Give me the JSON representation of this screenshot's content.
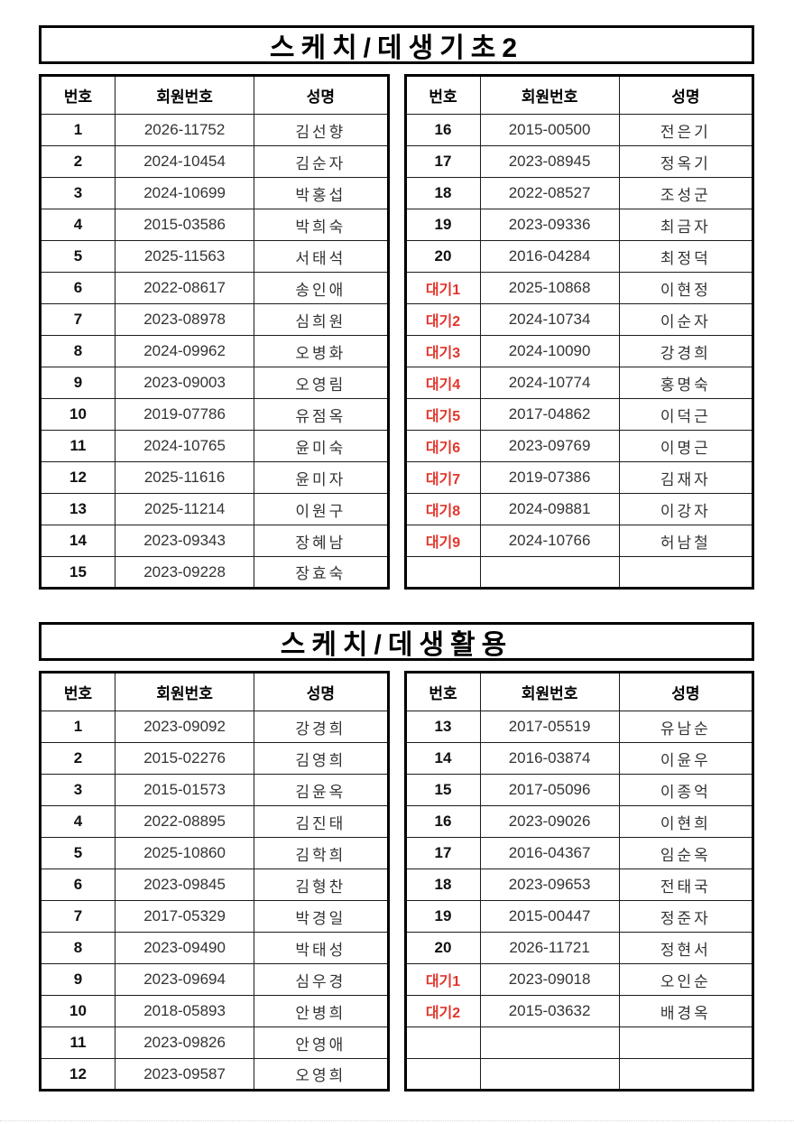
{
  "colors": {
    "border": "#000000",
    "text": "#111111",
    "cell_text": "#333333",
    "waitlist_red": "#e2352b",
    "background": "#ffffff"
  },
  "sections": [
    {
      "title": "스케치/데생기초2",
      "columns": [
        "번호",
        "회원번호",
        "성명"
      ],
      "left_rows": [
        {
          "no": "1",
          "member_no": "2026-11752",
          "name": "김선향",
          "wait": false
        },
        {
          "no": "2",
          "member_no": "2024-10454",
          "name": "김순자",
          "wait": false
        },
        {
          "no": "3",
          "member_no": "2024-10699",
          "name": "박홍섭",
          "wait": false
        },
        {
          "no": "4",
          "member_no": "2015-03586",
          "name": "박희숙",
          "wait": false
        },
        {
          "no": "5",
          "member_no": "2025-11563",
          "name": "서태석",
          "wait": false
        },
        {
          "no": "6",
          "member_no": "2022-08617",
          "name": "송인애",
          "wait": false
        },
        {
          "no": "7",
          "member_no": "2023-08978",
          "name": "심희원",
          "wait": false
        },
        {
          "no": "8",
          "member_no": "2024-09962",
          "name": "오병화",
          "wait": false
        },
        {
          "no": "9",
          "member_no": "2023-09003",
          "name": "오영림",
          "wait": false
        },
        {
          "no": "10",
          "member_no": "2019-07786",
          "name": "유점옥",
          "wait": false
        },
        {
          "no": "11",
          "member_no": "2024-10765",
          "name": "윤미숙",
          "wait": false
        },
        {
          "no": "12",
          "member_no": "2025-11616",
          "name": "윤미자",
          "wait": false
        },
        {
          "no": "13",
          "member_no": "2025-11214",
          "name": "이원구",
          "wait": false
        },
        {
          "no": "14",
          "member_no": "2023-09343",
          "name": "장혜남",
          "wait": false
        },
        {
          "no": "15",
          "member_no": "2023-09228",
          "name": "장효숙",
          "wait": false
        }
      ],
      "right_rows": [
        {
          "no": "16",
          "member_no": "2015-00500",
          "name": "전은기",
          "wait": false
        },
        {
          "no": "17",
          "member_no": "2023-08945",
          "name": "정옥기",
          "wait": false
        },
        {
          "no": "18",
          "member_no": "2022-08527",
          "name": "조성군",
          "wait": false
        },
        {
          "no": "19",
          "member_no": "2023-09336",
          "name": "최금자",
          "wait": false
        },
        {
          "no": "20",
          "member_no": "2016-04284",
          "name": "최정덕",
          "wait": false
        },
        {
          "no": "대기1",
          "member_no": "2025-10868",
          "name": "이현정",
          "wait": true
        },
        {
          "no": "대기2",
          "member_no": "2024-10734",
          "name": "이순자",
          "wait": true
        },
        {
          "no": "대기3",
          "member_no": "2024-10090",
          "name": "강경희",
          "wait": true
        },
        {
          "no": "대기4",
          "member_no": "2024-10774",
          "name": "홍명숙",
          "wait": true
        },
        {
          "no": "대기5",
          "member_no": "2017-04862",
          "name": "이덕근",
          "wait": true
        },
        {
          "no": "대기6",
          "member_no": "2023-09769",
          "name": "이명근",
          "wait": true
        },
        {
          "no": "대기7",
          "member_no": "2019-07386",
          "name": "김재자",
          "wait": true
        },
        {
          "no": "대기8",
          "member_no": "2024-09881",
          "name": "이강자",
          "wait": true
        },
        {
          "no": "대기9",
          "member_no": "2024-10766",
          "name": "허남철",
          "wait": true
        },
        {
          "no": "",
          "member_no": "",
          "name": "",
          "wait": false
        }
      ]
    },
    {
      "title": "스케치/데생활용",
      "columns": [
        "번호",
        "회원번호",
        "성명"
      ],
      "left_rows": [
        {
          "no": "1",
          "member_no": "2023-09092",
          "name": "강경희",
          "wait": false
        },
        {
          "no": "2",
          "member_no": "2015-02276",
          "name": "김영희",
          "wait": false
        },
        {
          "no": "3",
          "member_no": "2015-01573",
          "name": "김윤옥",
          "wait": false
        },
        {
          "no": "4",
          "member_no": "2022-08895",
          "name": "김진태",
          "wait": false
        },
        {
          "no": "5",
          "member_no": "2025-10860",
          "name": "김학희",
          "wait": false
        },
        {
          "no": "6",
          "member_no": "2023-09845",
          "name": "김형찬",
          "wait": false
        },
        {
          "no": "7",
          "member_no": "2017-05329",
          "name": "박경일",
          "wait": false
        },
        {
          "no": "8",
          "member_no": "2023-09490",
          "name": "박태성",
          "wait": false
        },
        {
          "no": "9",
          "member_no": "2023-09694",
          "name": "심우경",
          "wait": false
        },
        {
          "no": "10",
          "member_no": "2018-05893",
          "name": "안병희",
          "wait": false
        },
        {
          "no": "11",
          "member_no": "2023-09826",
          "name": "안영애",
          "wait": false
        },
        {
          "no": "12",
          "member_no": "2023-09587",
          "name": "오영희",
          "wait": false
        }
      ],
      "right_rows": [
        {
          "no": "13",
          "member_no": "2017-05519",
          "name": "유남순",
          "wait": false
        },
        {
          "no": "14",
          "member_no": "2016-03874",
          "name": "이윤우",
          "wait": false
        },
        {
          "no": "15",
          "member_no": "2017-05096",
          "name": "이종억",
          "wait": false
        },
        {
          "no": "16",
          "member_no": "2023-09026",
          "name": "이현희",
          "wait": false
        },
        {
          "no": "17",
          "member_no": "2016-04367",
          "name": "임순옥",
          "wait": false
        },
        {
          "no": "18",
          "member_no": "2023-09653",
          "name": "전태국",
          "wait": false
        },
        {
          "no": "19",
          "member_no": "2015-00447",
          "name": "정준자",
          "wait": false
        },
        {
          "no": "20",
          "member_no": "2026-11721",
          "name": "정현서",
          "wait": false
        },
        {
          "no": "대기1",
          "member_no": "2023-09018",
          "name": "오인순",
          "wait": true
        },
        {
          "no": "대기2",
          "member_no": "2015-03632",
          "name": "배경옥",
          "wait": true
        },
        {
          "no": "",
          "member_no": "",
          "name": "",
          "wait": false
        },
        {
          "no": "",
          "member_no": "",
          "name": "",
          "wait": false
        }
      ]
    }
  ]
}
